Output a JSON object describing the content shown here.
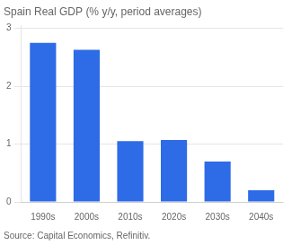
{
  "chart_data": {
    "type": "bar",
    "title": "Spain Real GDP (% y/y, period averages)",
    "annotations": [
      "Source: Capital Economics, Refinitiv."
    ],
    "categories": [
      "1990s",
      "2000s",
      "2010s",
      "2020s",
      "2030s",
      "2040s"
    ],
    "values": [
      2.75,
      2.63,
      1.05,
      1.07,
      0.7,
      0.2
    ],
    "color": "#2e6be6",
    "ylim": [
      0,
      3.05
    ],
    "yticks": [
      0,
      1,
      2,
      3
    ],
    "grid": true
  }
}
